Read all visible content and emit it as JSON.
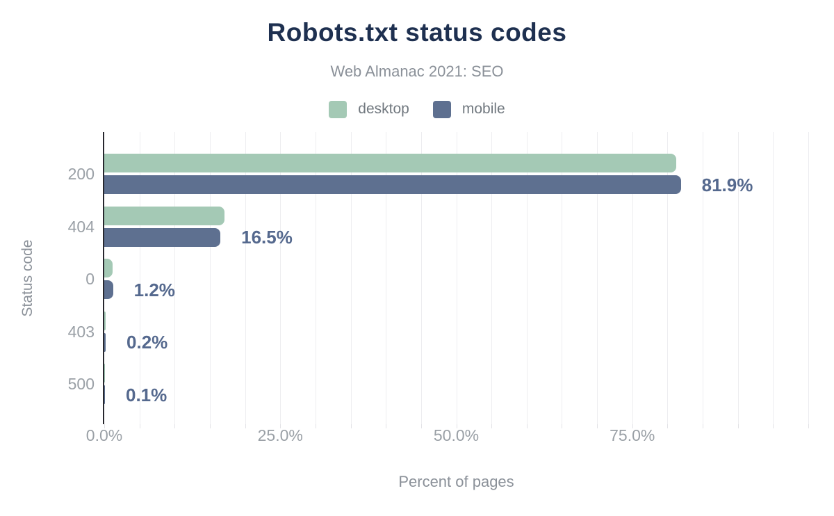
{
  "page": {
    "background": "#ffffff",
    "accent_navy": "#1e3050",
    "muted_gray": "#9aa0a6",
    "label_blue": "#55698e"
  },
  "chart_data": {
    "type": "bar",
    "orientation": "horizontal",
    "title": "Robots.txt status codes",
    "subtitle": "Web Almanac 2021: SEO",
    "xlabel": "Percent of pages",
    "ylabel": "Status code",
    "categories": [
      "200",
      "404",
      "0",
      "403",
      "500"
    ],
    "series": [
      {
        "name": "desktop",
        "color": "#a4c9b5",
        "values": [
          81.2,
          17.1,
          1.2,
          0.15,
          0.05
        ]
      },
      {
        "name": "mobile",
        "color": "#5e7090",
        "values": [
          81.9,
          16.5,
          1.25,
          0.2,
          0.1
        ]
      }
    ],
    "value_labels": [
      "81.9%",
      "16.5%",
      "1.2%",
      "0.2%",
      "0.1%"
    ],
    "value_labels_series": "mobile",
    "xlim": [
      0,
      100
    ],
    "x_tick_values": [
      0,
      25,
      50,
      75
    ],
    "x_tick_labels": [
      "0.0%",
      "25.0%",
      "50.0%",
      "75.0%"
    ],
    "gridline_step_pct": 5,
    "grid": true,
    "legend_position": "top"
  }
}
